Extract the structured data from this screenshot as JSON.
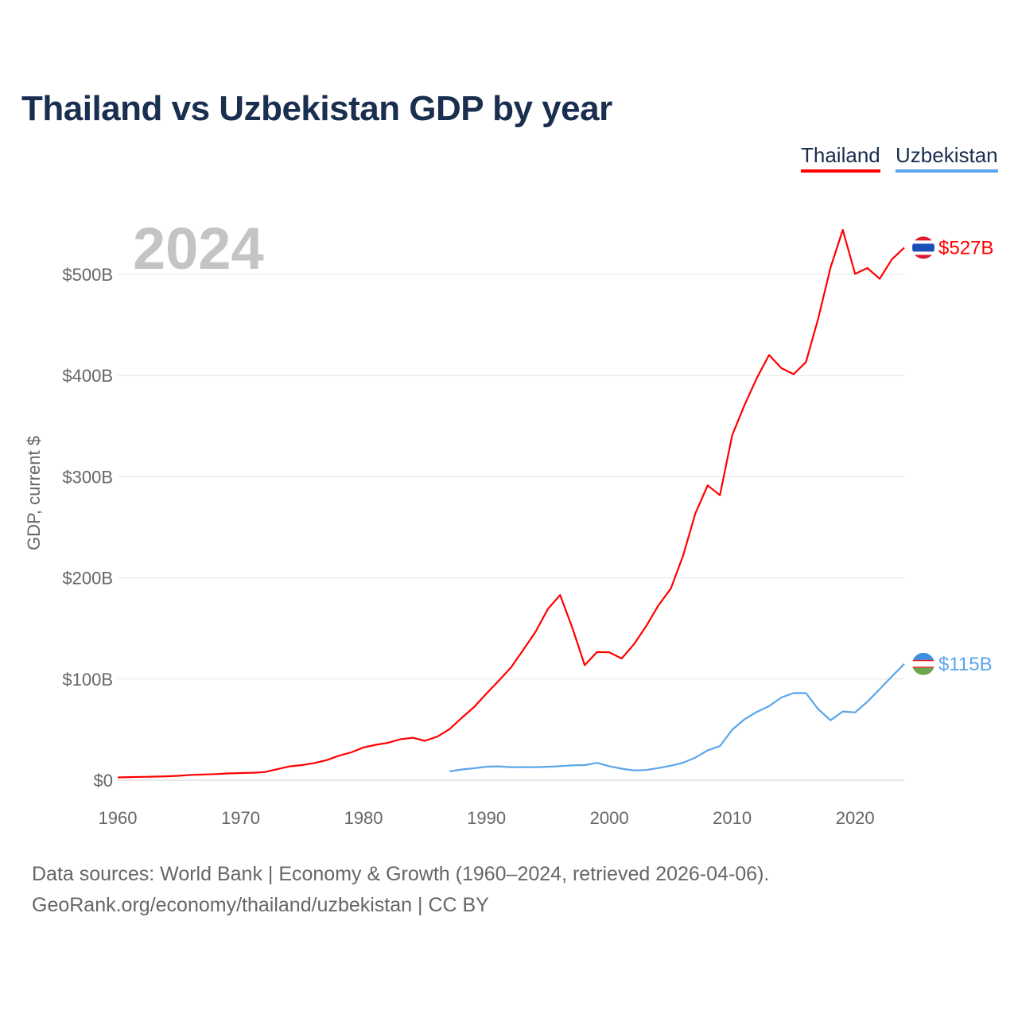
{
  "chart_data": {
    "type": "line",
    "title": "Thailand vs Uzbekistan GDP by year",
    "year_label": "2024",
    "xlabel": "",
    "ylabel": "GDP, current $",
    "xlim": [
      1960,
      2024
    ],
    "ylim": [
      0,
      550
    ],
    "x_ticks": [
      1960,
      1970,
      1980,
      1990,
      2000,
      2010,
      2020
    ],
    "x_tick_labels": [
      "1960",
      "1970",
      "1980",
      "1990",
      "2000",
      "2010",
      "2020"
    ],
    "y_ticks": [
      0,
      100,
      200,
      300,
      400,
      500
    ],
    "y_tick_labels": [
      "$0",
      "$100B",
      "$200B",
      "$300B",
      "$400B",
      "$500B"
    ],
    "grid": true,
    "legend_position": "top-right",
    "series": [
      {
        "name": "Thailand",
        "color": "#ff0000",
        "start_year": 1960,
        "end_label": "$527B",
        "values": [
          2.76,
          3.03,
          3.31,
          3.54,
          3.89,
          4.39,
          5.28,
          5.64,
          6.08,
          6.7,
          7.09,
          7.36,
          8.12,
          10.9,
          13.7,
          14.9,
          17.0,
          19.8,
          24.2,
          27.5,
          32.4,
          35.0,
          37.0,
          40.5,
          42.0,
          38.9,
          43.1,
          50.5,
          61.7,
          72.3,
          85.6,
          98.2,
          111.5,
          128.9,
          146.7,
          169.3,
          183.0,
          150.2,
          113.7,
          126.7,
          126.4,
          120.3,
          134.3,
          152.3,
          172.9,
          189.3,
          221.8,
          263.7,
          291.4,
          281.7,
          341.1,
          370.8,
          397.6,
          420.3,
          407.3,
          401.3,
          413.4,
          456.4,
          506.8,
          544.0,
          500.5,
          506.3,
          495.6,
          515.0,
          526.4
        ]
      },
      {
        "name": "Uzbekistan",
        "color": "#5aa5eb",
        "start_year": 1987,
        "end_label": "$115B",
        "values": [
          8.7,
          10.6,
          11.8,
          13.4,
          13.7,
          12.9,
          13.0,
          12.9,
          13.3,
          13.9,
          14.7,
          14.9,
          17.1,
          13.8,
          11.4,
          9.7,
          10.1,
          12.0,
          14.3,
          17.3,
          22.3,
          29.5,
          33.7,
          49.9,
          60.2,
          67.5,
          73.2,
          81.8,
          86.2,
          86.1,
          70.2,
          59.2,
          67.9,
          67.0,
          77.6,
          90.0,
          102.6,
          114.9
        ]
      }
    ]
  },
  "footer": {
    "line1": "Data sources: World Bank | Economy & Growth (1960–2024, retrieved 2026-04-06).",
    "line2": "GeoRank.org/economy/thailand/uzbekistan | CC BY"
  }
}
